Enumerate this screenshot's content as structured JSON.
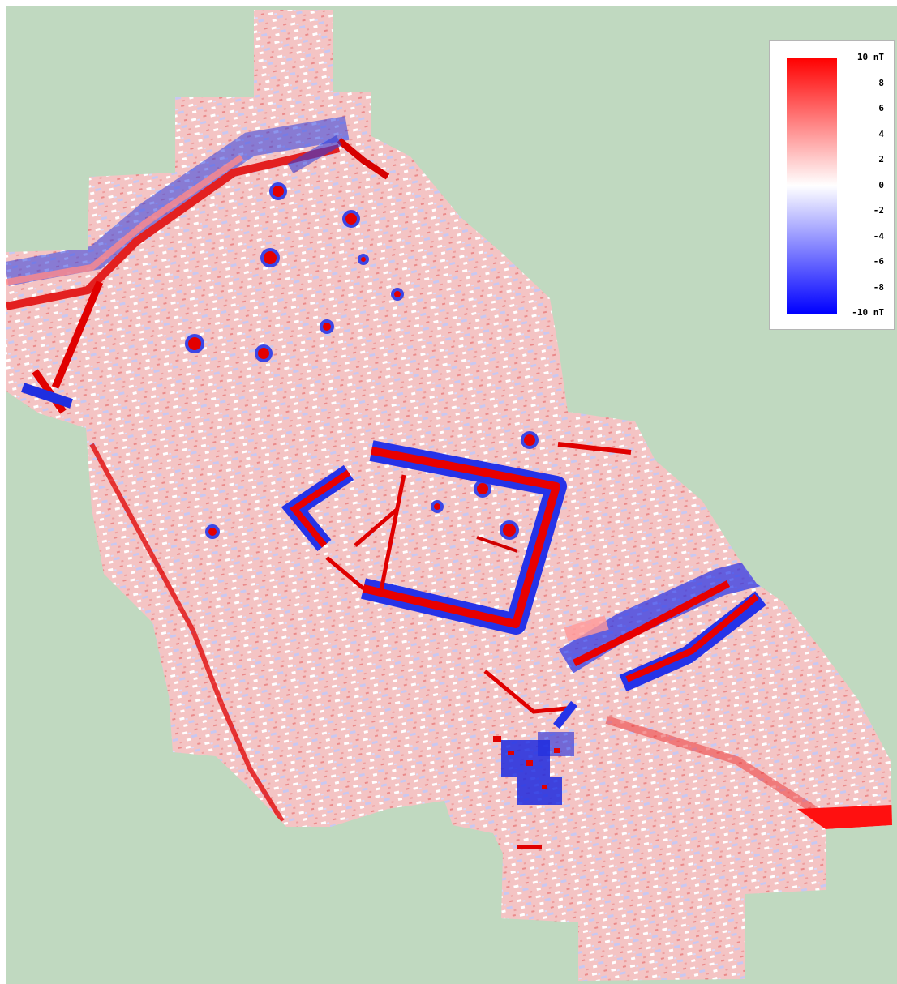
{
  "map": {
    "background_color": "#c0d9c0",
    "high_color": "#ff0000",
    "zero_color": "#ffffff",
    "low_color": "#0000ff"
  },
  "legend": {
    "ticks": [
      "10 nT",
      "8",
      "6",
      "4",
      "2",
      "0",
      "-2",
      "-4",
      "-6",
      "-8",
      "-10 nT"
    ]
  }
}
